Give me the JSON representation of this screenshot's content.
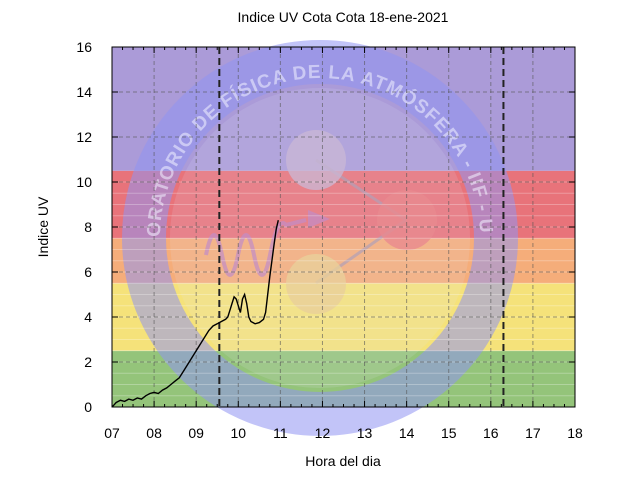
{
  "chart_data": {
    "type": "line",
    "title": "Indice UV Cota Cota 18-ene-2021",
    "xlabel": "Hora del dia",
    "ylabel": "Indice UV",
    "xlim": [
      7,
      18
    ],
    "ylim": [
      0,
      16
    ],
    "x_ticks": [
      "07",
      "08",
      "09",
      "10",
      "11",
      "12",
      "13",
      "14",
      "15",
      "16",
      "17",
      "18"
    ],
    "y_ticks": [
      0,
      2,
      4,
      6,
      8,
      10,
      12,
      14,
      16
    ],
    "grid": true,
    "legend": "none",
    "risk_bands": [
      {
        "from": 0,
        "to": 2.5,
        "color": "#94c47a"
      },
      {
        "from": 2.5,
        "to": 5.5,
        "color": "#f5e27a"
      },
      {
        "from": 5.5,
        "to": 7.5,
        "color": "#f5ad7a"
      },
      {
        "from": 7.5,
        "to": 10.5,
        "color": "#e8737a"
      },
      {
        "from": 10.5,
        "to": 16,
        "color": "#ab9bd8"
      }
    ],
    "dashed_vlines_x": [
      9.55,
      16.3
    ],
    "watermark_text": "LABORATORIO DE FÍSICA DE LA ATMÓSFERA - IIF - UMSA",
    "series": [
      {
        "color": "#000000",
        "x": [
          7.0,
          7.05,
          7.1,
          7.15,
          7.2,
          7.3,
          7.4,
          7.5,
          7.6,
          7.7,
          7.8,
          7.9,
          8.0,
          8.1,
          8.2,
          8.3,
          8.4,
          8.5,
          8.6,
          8.7,
          8.8,
          8.9,
          9.0,
          9.1,
          9.2,
          9.3,
          9.4,
          9.5,
          9.55,
          9.6,
          9.7,
          9.75,
          9.8,
          9.85,
          9.9,
          9.95,
          10.0,
          10.05,
          10.1,
          10.15,
          10.2,
          10.25,
          10.3,
          10.35,
          10.4,
          10.5,
          10.6,
          10.65,
          10.7,
          10.75,
          10.8,
          10.85,
          10.9,
          10.95
        ],
        "y": [
          0.0,
          0.1,
          0.2,
          0.25,
          0.3,
          0.25,
          0.35,
          0.3,
          0.4,
          0.35,
          0.5,
          0.6,
          0.65,
          0.6,
          0.75,
          0.85,
          1.0,
          1.15,
          1.3,
          1.6,
          1.9,
          2.2,
          2.5,
          2.8,
          3.1,
          3.4,
          3.6,
          3.7,
          3.75,
          3.8,
          3.9,
          4.0,
          4.3,
          4.6,
          4.9,
          4.8,
          4.5,
          4.2,
          4.8,
          5.0,
          4.6,
          4.0,
          3.8,
          3.75,
          3.7,
          3.75,
          3.9,
          4.2,
          5.0,
          5.8,
          6.5,
          7.2,
          7.9,
          8.3
        ]
      }
    ]
  }
}
